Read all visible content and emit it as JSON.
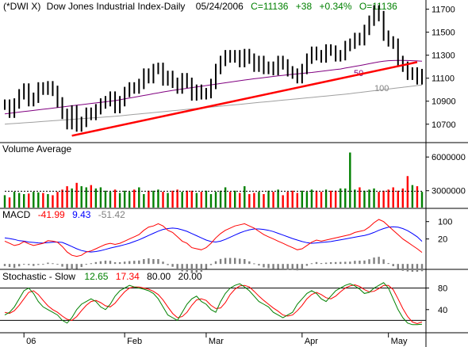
{
  "header": {
    "symbol": "(*DWI X)",
    "name": "Dow Jones Industrial Index-Daily",
    "date": "05/24/2006",
    "close": "C=11136",
    "change": "+38",
    "pct": "+0.34%",
    "open": "O=11136"
  },
  "colors": {
    "up": "#008000",
    "down": "#ff0000",
    "bar": "#000000",
    "ma50": "#800080",
    "ma100": "#a0a0a0",
    "trendline": "#ff0000",
    "volume_avg": "#000000",
    "macd": "#ff0000",
    "signal": "#0000ff",
    "histogram": "#808080",
    "stoch_k": "#008000",
    "stoch_d": "#ff0000"
  },
  "chart_data": {
    "type": "stock",
    "dates_axis": [
      "06",
      "Feb",
      "Mar",
      "Apr",
      "May"
    ],
    "price": {
      "ylim": [
        10540,
        11780
      ],
      "ticks": [
        10700,
        10900,
        11100,
        11300,
        11500,
        11700
      ],
      "ma_labels": {
        "ma50": "50",
        "ma100": "100"
      },
      "closes": [
        10870,
        10800,
        10880,
        10960,
        11010,
        10900,
        10930,
        11020,
        11000,
        11030,
        10990,
        10890,
        10790,
        10700,
        10820,
        10680,
        10720,
        10800,
        10780,
        10830,
        10880,
        10900,
        10940,
        10840,
        10900,
        10980,
        11020,
        11010,
        11050,
        11140,
        11100,
        11180,
        11190,
        11080,
        11120,
        11060,
        11010,
        11100,
        11060,
        10950,
        11000,
        10960,
        10970,
        11050,
        11180,
        11250,
        11300,
        11280,
        11300,
        11240,
        11310,
        11270,
        11200,
        11250,
        11180,
        11200,
        11170,
        11250,
        11220,
        11160,
        11140,
        11100,
        11180,
        11270,
        11330,
        11300,
        11280,
        11350,
        11340,
        11290,
        11300,
        11380,
        11400,
        11450,
        11430,
        11520,
        11600,
        11690,
        11640,
        11470,
        11420,
        11400,
        11250,
        11200,
        11130,
        11150,
        11090,
        11136
      ],
      "trendline": {
        "start": [
          14,
          10600
        ],
        "end": [
          86,
          11240
        ]
      },
      "ma50": [
        10790,
        10795,
        10800,
        10805,
        10810,
        10815,
        10820,
        10825,
        10830,
        10835,
        10840,
        10845,
        10850,
        10855,
        10860,
        10865,
        10870,
        10875,
        10880,
        10885,
        10890,
        10895,
        10900,
        10905,
        10912,
        10920,
        10928,
        10935,
        10942,
        10950,
        10957,
        10965,
        10972,
        10980,
        10987,
        10994,
        11000,
        11006,
        11012,
        11018,
        11024,
        11030,
        11036,
        11042,
        11048,
        11054,
        11060,
        11066,
        11072,
        11078,
        11084,
        11090,
        11095,
        11100,
        11105,
        11110,
        11115,
        11120,
        11125,
        11130,
        11134,
        11138,
        11142,
        11146,
        11150,
        11155,
        11160,
        11165,
        11170,
        11175,
        11180,
        11188,
        11195,
        11203,
        11210,
        11218,
        11226,
        11234,
        11242,
        11248,
        11252,
        11254,
        11255,
        11255,
        11254,
        11252,
        11250,
        11248
      ],
      "ma100": [
        10700,
        10703,
        10706,
        10709,
        10712,
        10715,
        10718,
        10721,
        10724,
        10727,
        10730,
        10733,
        10736,
        10739,
        10742,
        10745,
        10748,
        10751,
        10754,
        10757,
        10760,
        10763,
        10766,
        10769,
        10773,
        10777,
        10781,
        10785,
        10789,
        10793,
        10797,
        10801,
        10805,
        10809,
        10813,
        10817,
        10821,
        10825,
        10829,
        10833,
        10837,
        10841,
        10845,
        10849,
        10853,
        10857,
        10861,
        10865,
        10869,
        10873,
        10877,
        10881,
        10885,
        10889,
        10893,
        10897,
        10901,
        10905,
        10909,
        10913,
        10917,
        10921,
        10925,
        10929,
        10933,
        10937,
        10941,
        10945,
        10949,
        10953,
        10957,
        10961,
        10966,
        10971,
        10976,
        10981,
        10986,
        10991,
        10996,
        11001,
        11006,
        11011,
        11016,
        11021,
        11026,
        11031,
        11036,
        11041
      ]
    },
    "volume": {
      "label": "Volume Average",
      "ylim": [
        1500000,
        7000000
      ],
      "ticks": [
        {
          "v": 3000000,
          "l": "3000000"
        },
        {
          "v": 6000000,
          "l": "6000000"
        }
      ],
      "values": [
        2600000,
        2400000,
        2900000,
        2800000,
        2700000,
        2750000,
        2900000,
        2850000,
        2800000,
        2700000,
        2600000,
        2900000,
        3100000,
        3400000,
        3200000,
        3700000,
        3400000,
        3300000,
        3500000,
        3200000,
        3300000,
        3000000,
        2900000,
        3100000,
        2800000,
        3000000,
        2900000,
        3100000,
        3300000,
        2700000,
        3000000,
        3000000,
        3100000,
        2900000,
        2800000,
        3000000,
        3100000,
        2900000,
        3000000,
        3000000,
        2800000,
        2900000,
        3000000,
        2700000,
        2900000,
        3000000,
        3300000,
        2900000,
        3000000,
        2800000,
        3400000,
        2700000,
        2800000,
        2900000,
        2700000,
        3000000,
        2900000,
        3100000,
        2600000,
        2900000,
        3000000,
        2800000,
        3000000,
        2900000,
        3100000,
        3000000,
        2900000,
        3100000,
        3000000,
        3000000,
        3200000,
        3200000,
        6400000,
        3100000,
        3300000,
        3000000,
        3100000,
        3200000,
        2900000,
        3000000,
        3100000,
        3300000,
        3000000,
        3200000,
        4300000,
        3500000,
        3400000,
        2900000
      ],
      "avg": 2950000
    },
    "macd": {
      "label": "MACD",
      "macd_value": "-41.99",
      "signal_value": "9.43",
      "hist_value": "-51.42",
      "ylim": [
        -120,
        150
      ],
      "ticks": [
        {
          "v": 20,
          "l": "20"
        },
        {
          "v": 100,
          "l": "100"
        }
      ],
      "macd": [
        10,
        0,
        -10,
        -5,
        8,
        -2,
        -10,
        -5,
        0,
        12,
        10,
        5,
        -15,
        -40,
        -55,
        -60,
        -55,
        -40,
        -35,
        -25,
        -15,
        -5,
        0,
        -5,
        0,
        10,
        20,
        30,
        40,
        60,
        75,
        80,
        90,
        80,
        60,
        50,
        30,
        10,
        0,
        -20,
        -25,
        -30,
        -20,
        0,
        25,
        45,
        60,
        70,
        80,
        85,
        90,
        80,
        70,
        55,
        40,
        30,
        20,
        10,
        0,
        -10,
        -20,
        -30,
        -25,
        -10,
        5,
        15,
        10,
        15,
        20,
        25,
        30,
        35,
        40,
        50,
        55,
        60,
        75,
        95,
        110,
        100,
        80,
        60,
        40,
        20,
        5,
        -10,
        -25,
        -42
      ],
      "signal": [
        25,
        22,
        18,
        12,
        10,
        6,
        4,
        2,
        1,
        3,
        5,
        6,
        4,
        -5,
        -15,
        -25,
        -33,
        -38,
        -40,
        -38,
        -34,
        -28,
        -22,
        -17,
        -12,
        -6,
        0,
        8,
        16,
        26,
        36,
        46,
        56,
        64,
        68,
        70,
        68,
        62,
        55,
        45,
        35,
        25,
        15,
        8,
        6,
        10,
        18,
        28,
        38,
        48,
        56,
        62,
        66,
        66,
        64,
        60,
        54,
        46,
        38,
        30,
        22,
        15,
        8,
        3,
        0,
        2,
        4,
        6,
        8,
        12,
        16,
        20,
        24,
        28,
        32,
        36,
        42,
        50,
        60,
        68,
        74,
        76,
        74,
        68,
        58,
        45,
        30,
        9
      ],
      "hist": [
        -15,
        -22,
        -28,
        -17,
        -2,
        -8,
        -14,
        -7,
        -1,
        9,
        5,
        -1,
        -19,
        -35,
        -40,
        -35,
        -22,
        -2,
        5,
        13,
        19,
        23,
        22,
        12,
        12,
        16,
        20,
        22,
        24,
        34,
        39,
        34,
        34,
        16,
        -8,
        -20,
        -38,
        -52,
        -55,
        -65,
        -60,
        -55,
        -35,
        -8,
        19,
        35,
        42,
        42,
        42,
        37,
        34,
        18,
        4,
        -11,
        -24,
        -30,
        -34,
        -36,
        -38,
        -40,
        -42,
        -45,
        -33,
        -13,
        5,
        13,
        6,
        9,
        12,
        13,
        14,
        15,
        16,
        22,
        23,
        24,
        33,
        45,
        50,
        32,
        6,
        -16,
        -34,
        -48,
        -53,
        -55,
        -55,
        -51
      ]
    },
    "stochastic": {
      "label": "Stochastic - Slow",
      "k_value": "12.65",
      "d_value": "17.34",
      "upper": "80.00",
      "lower": "20.00",
      "ylim": [
        0,
        100
      ],
      "ticks": [
        {
          "v": 40,
          "l": "40"
        },
        {
          "v": 80,
          "l": "80"
        }
      ],
      "k": [
        30,
        35,
        45,
        60,
        75,
        80,
        70,
        55,
        45,
        40,
        35,
        30,
        20,
        15,
        25,
        40,
        50,
        55,
        60,
        55,
        45,
        40,
        50,
        65,
        75,
        80,
        85,
        82,
        80,
        78,
        75,
        70,
        60,
        45,
        30,
        25,
        20,
        35,
        50,
        60,
        65,
        55,
        50,
        40,
        35,
        55,
        70,
        80,
        85,
        88,
        82,
        75,
        65,
        55,
        50,
        45,
        35,
        30,
        25,
        30,
        35,
        50,
        60,
        70,
        75,
        70,
        60,
        55,
        65,
        75,
        80,
        85,
        88,
        84,
        78,
        70,
        72,
        80,
        85,
        90,
        80,
        60,
        40,
        25,
        15,
        12,
        12,
        13
      ],
      "d": [
        35,
        33,
        38,
        48,
        60,
        72,
        75,
        68,
        57,
        47,
        40,
        35,
        28,
        22,
        20,
        27,
        38,
        48,
        55,
        57,
        53,
        47,
        45,
        52,
        63,
        73,
        80,
        82,
        82,
        80,
        78,
        74,
        68,
        58,
        45,
        33,
        25,
        27,
        35,
        48,
        58,
        60,
        57,
        48,
        42,
        43,
        53,
        68,
        78,
        84,
        85,
        82,
        74,
        65,
        57,
        50,
        43,
        37,
        30,
        28,
        30,
        38,
        48,
        60,
        68,
        72,
        68,
        62,
        60,
        65,
        73,
        80,
        84,
        86,
        83,
        77,
        73,
        74,
        79,
        85,
        85,
        77,
        60,
        42,
        27,
        17,
        14,
        17
      ]
    }
  }
}
